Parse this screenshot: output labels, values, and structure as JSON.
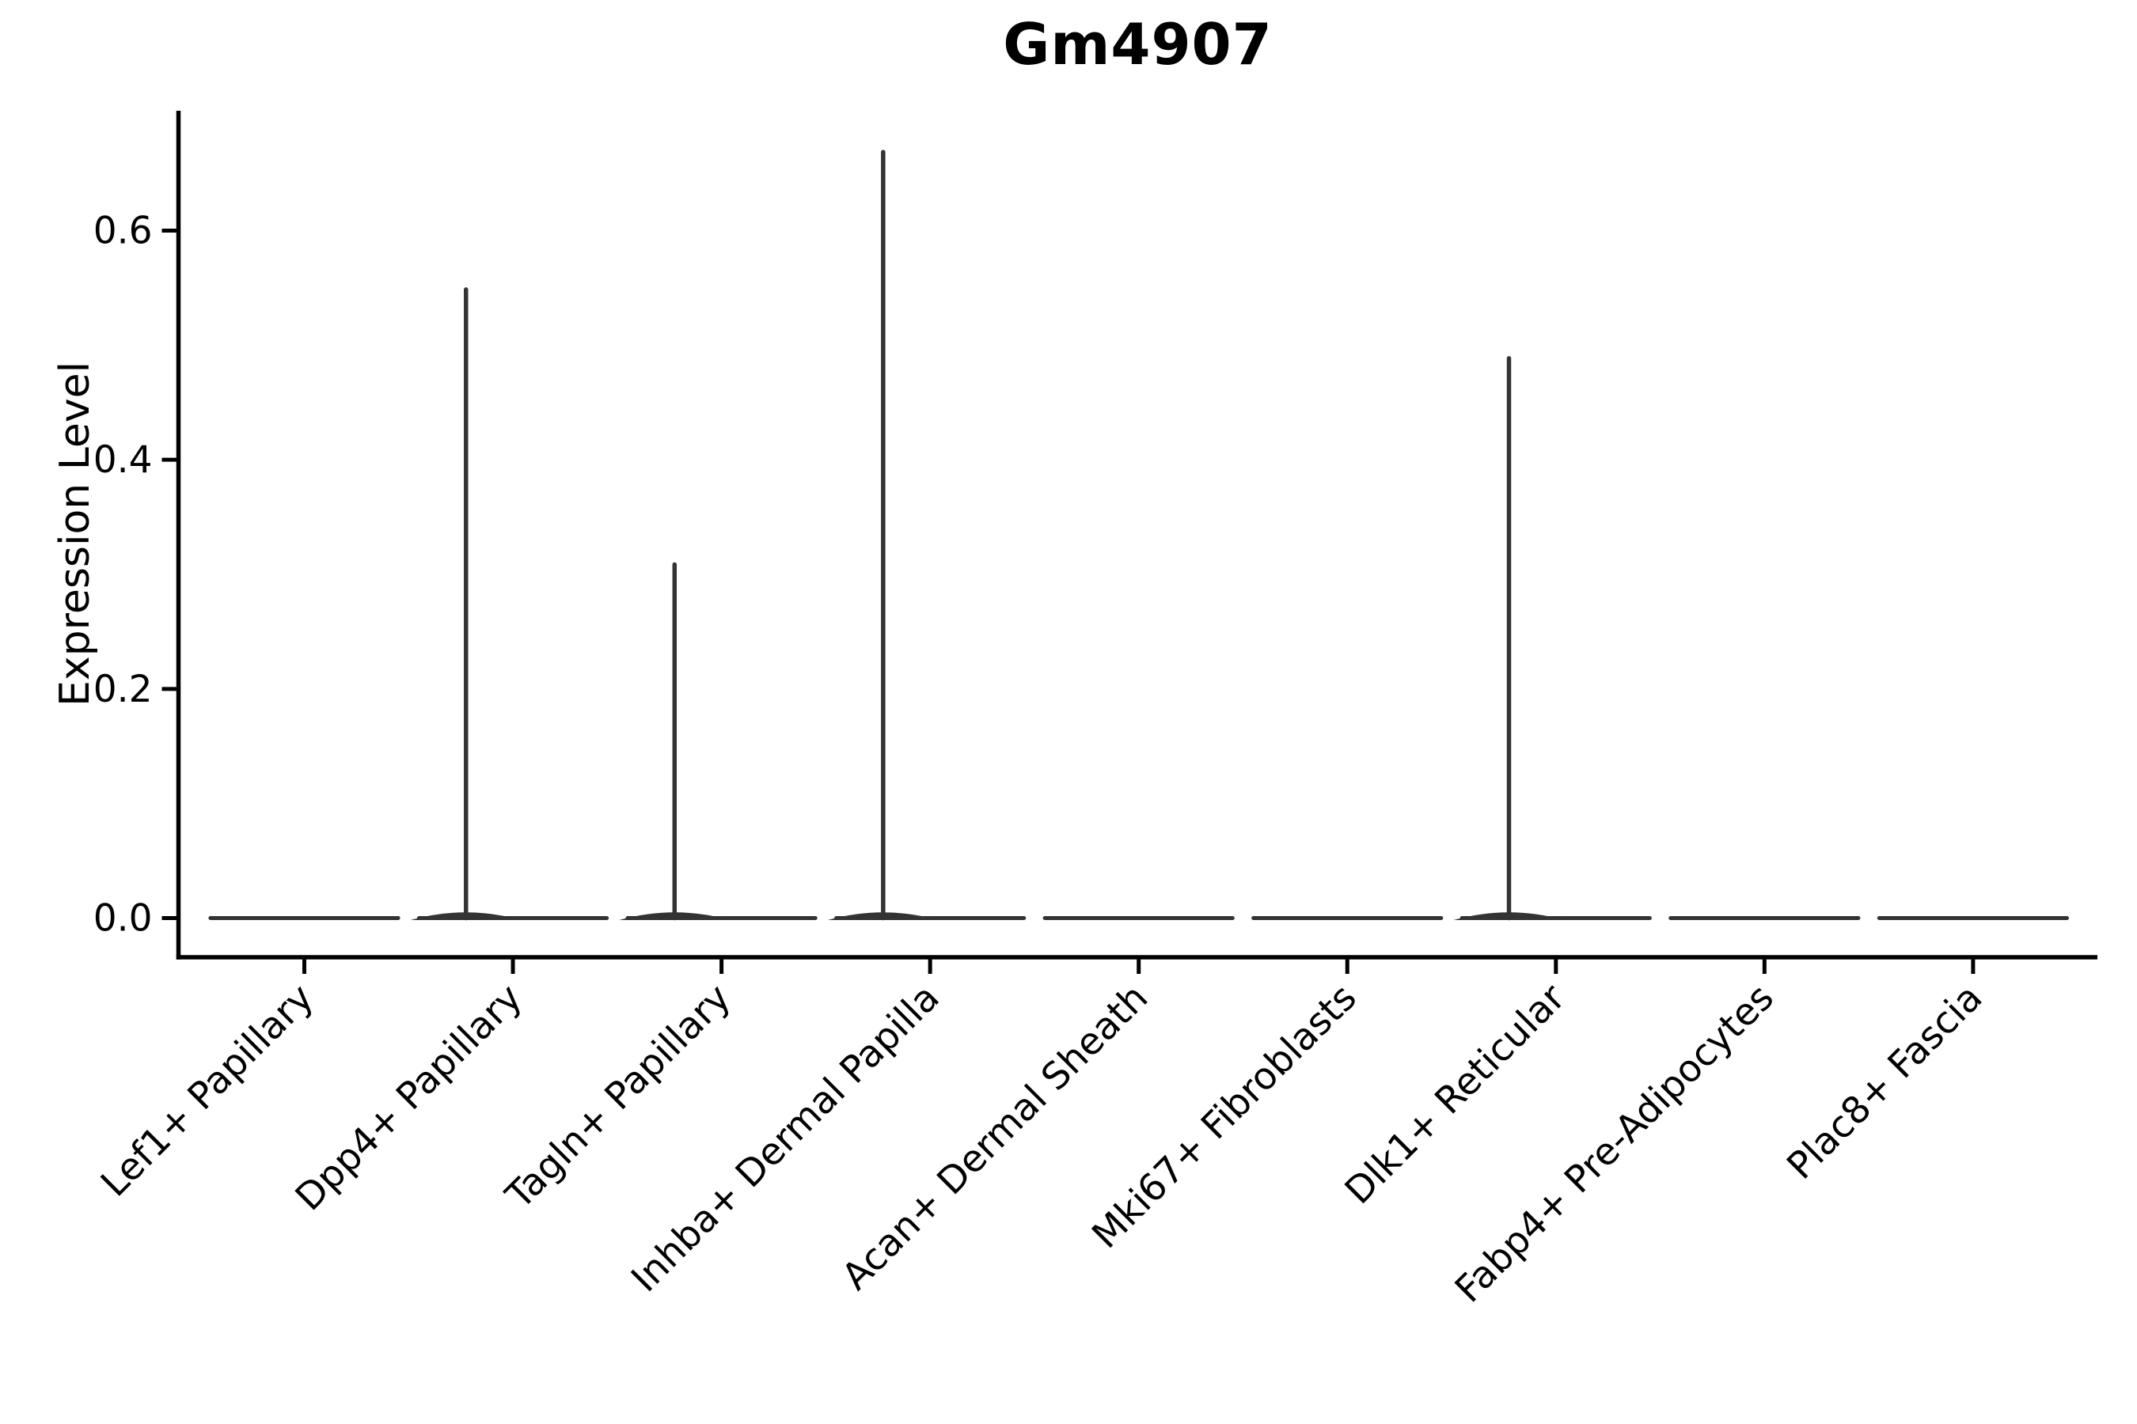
{
  "chart_data": {
    "type": "violin",
    "title": "Gm4907",
    "ylabel": "Expression Level",
    "xlabel": "",
    "yticks": [
      0.0,
      0.2,
      0.4,
      0.6
    ],
    "ylim": [
      -0.035,
      0.705
    ],
    "grid": false,
    "legend": null,
    "categories": [
      "Lef1+ Papillary",
      "Dpp4+ Papillary",
      "Tagln+ Papillary",
      "Inhba+ Dermal Papilla",
      "Acan+ Dermal Sheath",
      "Mki67+ Fibroblasts",
      "Dlk1+ Reticular",
      "Fabp4+ Pre-Adipocytes",
      "Plac8+ Fascia"
    ],
    "violins": [
      {
        "category": "Lef1+ Papillary",
        "spike_max": 0
      },
      {
        "category": "Dpp4+ Papillary",
        "spike_max": 0.55
      },
      {
        "category": "Tagln+ Papillary",
        "spike_max": 0.31
      },
      {
        "category": "Inhba+ Dermal Papilla",
        "spike_max": 0.67
      },
      {
        "category": "Acan+ Dermal Sheath",
        "spike_max": 0
      },
      {
        "category": "Mki67+ Fibroblasts",
        "spike_max": 0
      },
      {
        "category": "Dlk1+ Reticular",
        "spike_max": 0.49
      },
      {
        "category": "Fabp4+ Pre-Adipocytes",
        "spike_max": 0
      },
      {
        "category": "Plac8+ Fascia",
        "spike_max": 0
      }
    ],
    "violin_width_frac": 0.9,
    "spike_offset_frac": -0.225,
    "line_color": "#333333",
    "axis_color": "#000000",
    "text_color": "#000000"
  }
}
